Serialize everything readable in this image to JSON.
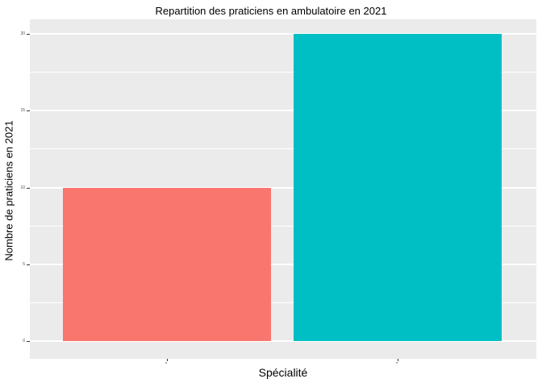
{
  "chart_data": {
    "type": "bar",
    "title": "Repartition des praticiens en ambulatoire en 2021",
    "xlabel": "Spécialité",
    "ylabel": "Nombre de praticiens en 2021",
    "categories": [
      "a",
      "b"
    ],
    "values": [
      10,
      20
    ],
    "bar_colors": [
      "#F8766D",
      "#00BFC4"
    ],
    "ylim": [
      0,
      20
    ],
    "y_major_ticks": [
      0,
      5,
      10,
      15,
      20
    ],
    "y_minor_ticks": [
      2.5,
      7.5,
      12.5,
      17.5
    ],
    "legend": "none",
    "grid": "on",
    "panel_bg": "#EBEBEB",
    "grid_color": "#FFFFFF",
    "tick_label_color": "#4d4d4d"
  }
}
